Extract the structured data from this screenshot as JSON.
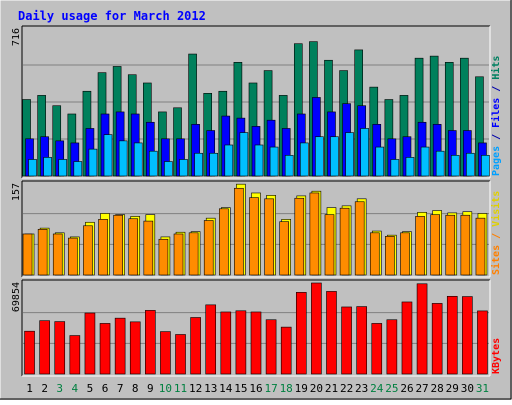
{
  "chart_data": {
    "type": "bar",
    "title": "Daily usage for March 2012",
    "categories": [
      "1",
      "2",
      "3",
      "4",
      "5",
      "6",
      "7",
      "8",
      "9",
      "10",
      "11",
      "12",
      "13",
      "14",
      "15",
      "16",
      "17",
      "18",
      "19",
      "20",
      "21",
      "22",
      "23",
      "24",
      "25",
      "26",
      "27",
      "28",
      "29",
      "30",
      "31"
    ],
    "weekend_days": [
      "3",
      "4",
      "10",
      "11",
      "17",
      "18",
      "24",
      "25",
      "31"
    ],
    "panels": [
      {
        "id": "top",
        "ylabel_parts": [
          {
            "text": "Pages",
            "color": "#00a0ff"
          },
          {
            "text": " / ",
            "color": "#0000aa"
          },
          {
            "text": "Files",
            "color": "#0000ff"
          },
          {
            "text": " / ",
            "color": "#0000aa"
          },
          {
            "text": "Hits",
            "color": "#008060"
          }
        ],
        "max_label": "716",
        "ylim": [
          0,
          716
        ],
        "series": [
          {
            "name": "Hits",
            "color": "#00805c",
            "values": [
              370,
              390,
              340,
              300,
              410,
              500,
              530,
              490,
              450,
              310,
              330,
              590,
              400,
              410,
              550,
              450,
              510,
              390,
              640,
              650,
              560,
              510,
              610,
              430,
              370,
              390,
              570,
              580,
              550,
              570,
              480
            ]
          },
          {
            "name": "Files",
            "color": "#0000ff",
            "values": [
              180,
              190,
              170,
              160,
              230,
              300,
              310,
              300,
              260,
              180,
              180,
              250,
              220,
              290,
              280,
              240,
              270,
              230,
              300,
              380,
              310,
              350,
              340,
              250,
              180,
              190,
              260,
              250,
              220,
              220,
              160
            ]
          },
          {
            "name": "Pages",
            "color": "#00bfff",
            "values": [
              80,
              90,
              80,
              70,
              130,
              200,
              170,
              160,
              120,
              70,
              80,
              110,
              110,
              150,
              210,
              150,
              140,
              100,
              160,
              190,
              190,
              210,
              230,
              140,
              80,
              90,
              140,
              120,
              100,
              110,
              100
            ]
          }
        ]
      },
      {
        "id": "middle",
        "ylabel_parts": [
          {
            "text": "Sites",
            "color": "#ff8000"
          },
          {
            "text": " / ",
            "color": "#ff8000"
          },
          {
            "text": "Visits",
            "color": "#e0d000"
          }
        ],
        "max_label": "157",
        "ylim": [
          0,
          157
        ],
        "series": [
          {
            "name": "Visits",
            "color": "#ffff00",
            "values": [
              70,
              80,
              72,
              65,
              90,
              105,
              103,
              100,
              103,
              65,
              73,
              74,
              97,
              115,
              155,
              140,
              136,
              95,
              135,
              143,
              115,
              118,
              130,
              75,
              68,
              74,
              107,
              110,
              106,
              108,
              105
            ]
          },
          {
            "name": "Sites",
            "color": "#ff8c00",
            "values": [
              70,
              78,
              70,
              63,
              84,
              95,
              102,
              96,
              92,
              61,
              70,
              72,
              93,
              113,
              148,
              132,
              130,
              91,
              131,
              140,
              103,
              114,
              125,
              72,
              66,
              72,
              100,
              103,
              102,
              102,
              97
            ]
          }
        ]
      },
      {
        "id": "bottom",
        "ylabel_parts": [
          {
            "text": "KBytes",
            "color": "#ff0000"
          }
        ],
        "max_label": "69854",
        "ylim": [
          0,
          69854
        ],
        "series": [
          {
            "name": "KBytes",
            "color": "#ff0000",
            "values": [
              32500,
              40500,
              39800,
              29200,
              46300,
              38400,
              42400,
              39600,
              48300,
              32200,
              30000,
              42900,
              52500,
              47100,
              48000,
              47100,
              41200,
              35600,
              62000,
              69100,
              62700,
              50900,
              51200,
              38400,
              41200,
              54700,
              68500,
              53600,
              59000,
              58800,
              47900
            ]
          }
        ]
      }
    ],
    "colors": {
      "background": "#c0c0c0",
      "title": "#0000ff",
      "weekday_label": "#000000",
      "weekend_label": "#008040",
      "grid": "#808080"
    }
  }
}
